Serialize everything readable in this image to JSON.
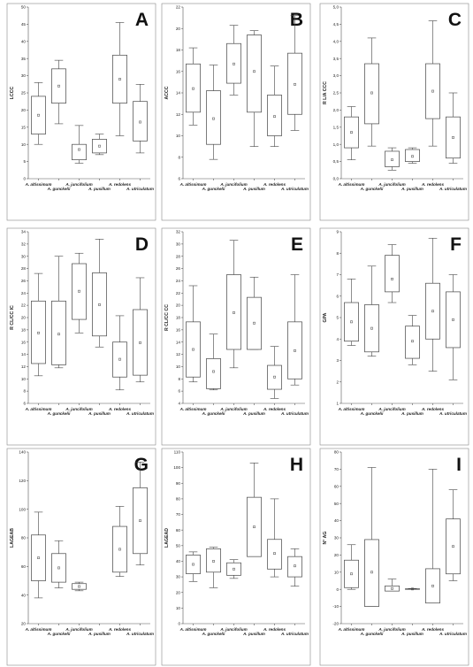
{
  "categories": [
    "A. altissimum",
    "A. gunckelii",
    "A. juncifolium",
    "A. pusillum",
    "A. redolens",
    "A. utriculatum"
  ],
  "chart_data": [
    {
      "id": "A",
      "panel_label": "A",
      "type": "box",
      "ylabel": "LCCC",
      "ylim": [
        0,
        50
      ],
      "yticks": [
        0,
        5,
        10,
        15,
        20,
        25,
        30,
        35,
        40,
        45,
        50
      ],
      "boxes": [
        {
          "min": 10,
          "q1": 13,
          "q3": 24,
          "max": 28,
          "mean": 18.5
        },
        {
          "min": 16,
          "q1": 22,
          "q3": 32,
          "max": 34.5,
          "mean": 27
        },
        {
          "min": 4.5,
          "q1": 5.5,
          "q3": 10,
          "max": 15.5,
          "mean": 8.5
        },
        {
          "min": 7,
          "q1": 7.5,
          "q3": 11.5,
          "max": 13,
          "mean": 9.5
        },
        {
          "min": 12.5,
          "q1": 22,
          "q3": 36,
          "max": 45.5,
          "mean": 29
        },
        {
          "min": 7.5,
          "q1": 11,
          "q3": 22.5,
          "max": 27.5,
          "mean": 16.5
        }
      ]
    },
    {
      "id": "B",
      "panel_label": "B",
      "type": "box",
      "ylabel": "ACCC",
      "ylim": [
        6,
        22
      ],
      "yticks": [
        6,
        8,
        10,
        12,
        14,
        16,
        18,
        20,
        22
      ],
      "boxes": [
        {
          "min": 11,
          "q1": 12.2,
          "q3": 16.7,
          "max": 18.2,
          "mean": 14.4
        },
        {
          "min": 7.8,
          "q1": 9.2,
          "q3": 14.2,
          "max": 16.6,
          "mean": 11.6
        },
        {
          "min": 13.8,
          "q1": 14.9,
          "q3": 18.6,
          "max": 20.3,
          "mean": 16.7
        },
        {
          "min": 9,
          "q1": 12.2,
          "q3": 19.4,
          "max": 19.8,
          "mean": 16
        },
        {
          "min": 9,
          "q1": 10,
          "q3": 13.8,
          "max": 16.5,
          "mean": 11.8
        },
        {
          "min": 10.5,
          "q1": 12,
          "q3": 17.7,
          "max": 21.2,
          "mean": 14.8
        }
      ]
    },
    {
      "id": "C",
      "panel_label": "C",
      "type": "box",
      "ylabel": "R L/A CCC",
      "ylim": [
        0,
        5
      ],
      "yticks": [
        0.0,
        0.5,
        1.0,
        1.5,
        2.0,
        2.5,
        3.0,
        3.5,
        4.0,
        4.5,
        5.0
      ],
      "tick_format": "comma1",
      "boxes": [
        {
          "min": 0.55,
          "q1": 0.9,
          "q3": 1.8,
          "max": 2.1,
          "mean": 1.35
        },
        {
          "min": 0.95,
          "q1": 1.6,
          "q3": 3.35,
          "max": 4.1,
          "mean": 2.5
        },
        {
          "min": 0.25,
          "q1": 0.35,
          "q3": 0.8,
          "max": 0.9,
          "mean": 0.55
        },
        {
          "min": 0.45,
          "q1": 0.5,
          "q3": 0.85,
          "max": 0.9,
          "mean": 0.65
        },
        {
          "min": 0.95,
          "q1": 1.75,
          "q3": 3.35,
          "max": 4.6,
          "mean": 2.55
        },
        {
          "min": 0.45,
          "q1": 0.6,
          "q3": 1.8,
          "max": 2.5,
          "mean": 1.2
        }
      ]
    },
    {
      "id": "D",
      "panel_label": "D",
      "type": "box",
      "ylabel": "R CL/CC IC",
      "ylim": [
        6,
        34
      ],
      "yticks": [
        6,
        8,
        10,
        12,
        14,
        16,
        18,
        20,
        22,
        24,
        26,
        28,
        30,
        32,
        34
      ],
      "boxes": [
        {
          "min": 10.5,
          "q1": 12.5,
          "q3": 22.7,
          "max": 27.2,
          "mean": 17.5
        },
        {
          "min": 11.8,
          "q1": 12.3,
          "q3": 22.7,
          "max": 30,
          "mean": 17.3
        },
        {
          "min": 17.5,
          "q1": 19.7,
          "q3": 28.8,
          "max": 30.5,
          "mean": 24.3
        },
        {
          "min": 15.2,
          "q1": 17,
          "q3": 27.3,
          "max": 32.8,
          "mean": 22.1
        },
        {
          "min": 8.2,
          "q1": 10.3,
          "q3": 16,
          "max": 20.3,
          "mean": 13.2
        },
        {
          "min": 9.5,
          "q1": 10.6,
          "q3": 21.3,
          "max": 26.5,
          "mean": 15.9
        }
      ]
    },
    {
      "id": "E",
      "panel_label": "E",
      "type": "box",
      "ylabel": "R CL/CC CC",
      "ylim": [
        4,
        32
      ],
      "yticks": [
        4,
        6,
        8,
        10,
        12,
        14,
        16,
        18,
        20,
        22,
        24,
        26,
        28,
        30,
        32
      ],
      "boxes": [
        {
          "min": 7.5,
          "q1": 8.3,
          "q3": 17.3,
          "max": 23.2,
          "mean": 12.8
        },
        {
          "min": 6.2,
          "q1": 6.4,
          "q3": 11.3,
          "max": 15.3,
          "mean": 9.2
        },
        {
          "min": 9.8,
          "q1": 12.8,
          "q3": 25,
          "max": 30.6,
          "mean": 18.8
        },
        {
          "min": 12.8,
          "q1": 12.8,
          "q3": 21.3,
          "max": 24.6,
          "mean": 17.1
        },
        {
          "min": 4.8,
          "q1": 6.3,
          "q3": 10.2,
          "max": 13.3,
          "mean": 8.3
        },
        {
          "min": 7,
          "q1": 8,
          "q3": 17.3,
          "max": 25,
          "mean": 12.6
        }
      ]
    },
    {
      "id": "F",
      "panel_label": "F",
      "type": "box",
      "ylabel": "GPA",
      "ylim": [
        1,
        9
      ],
      "yticks": [
        1,
        2,
        3,
        4,
        5,
        6,
        7,
        8,
        9
      ],
      "boxes": [
        {
          "min": 3.7,
          "q1": 3.9,
          "q3": 5.7,
          "max": 6.8,
          "mean": 4.8
        },
        {
          "min": 3.2,
          "q1": 3.4,
          "q3": 5.6,
          "max": 7.4,
          "mean": 4.5
        },
        {
          "min": 5.7,
          "q1": 6.2,
          "q3": 7.9,
          "max": 8.4,
          "mean": 6.8
        },
        {
          "min": 2.8,
          "q1": 3.1,
          "q3": 4.6,
          "max": 5.1,
          "mean": 3.9
        },
        {
          "min": 2.5,
          "q1": 4.0,
          "q3": 6.6,
          "max": 8.7,
          "mean": 5.3
        },
        {
          "min": 2.1,
          "q1": 3.6,
          "q3": 6.2,
          "max": 7.0,
          "mean": 4.9
        }
      ]
    },
    {
      "id": "G",
      "panel_label": "G",
      "type": "box",
      "ylabel": "LAGEAB",
      "ylim": [
        20,
        140
      ],
      "yticks": [
        20,
        40,
        60,
        80,
        100,
        120,
        140
      ],
      "boxes": [
        {
          "min": 38,
          "q1": 50,
          "q3": 82,
          "max": 98,
          "mean": 66
        },
        {
          "min": 45,
          "q1": 49,
          "q3": 69,
          "max": 78,
          "mean": 59
        },
        {
          "min": 43,
          "q1": 44,
          "q3": 48,
          "max": 49,
          "mean": 46
        },
        null,
        {
          "min": 53,
          "q1": 56,
          "q3": 88,
          "max": 102,
          "mean": 72
        },
        {
          "min": 61,
          "q1": 69,
          "q3": 115,
          "max": 133,
          "mean": 92
        }
      ]
    },
    {
      "id": "H",
      "panel_label": "H",
      "type": "box",
      "ylabel": "LAGEAD",
      "ylim": [
        0,
        110
      ],
      "yticks": [
        0,
        10,
        20,
        30,
        40,
        50,
        60,
        70,
        80,
        90,
        100,
        110
      ],
      "boxes": [
        {
          "min": 27,
          "q1": 32,
          "q3": 44,
          "max": 46,
          "mean": 38
        },
        {
          "min": 23,
          "q1": 33,
          "q3": 48,
          "max": 49,
          "mean": 40
        },
        {
          "min": 29,
          "q1": 31,
          "q3": 39,
          "max": 41,
          "mean": 35
        },
        {
          "min": 43,
          "q1": 43,
          "q3": 81,
          "max": 103,
          "mean": 62
        },
        {
          "min": 30,
          "q1": 35,
          "q3": 54,
          "max": 80,
          "mean": 45
        },
        {
          "min": 24,
          "q1": 30,
          "q3": 43,
          "max": 48,
          "mean": 37
        }
      ]
    },
    {
      "id": "I",
      "panel_label": "I",
      "type": "box",
      "ylabel": "N° AG",
      "ylim": [
        -20,
        80
      ],
      "yticks": [
        -20,
        -10,
        0,
        10,
        20,
        30,
        40,
        50,
        60,
        70,
        80
      ],
      "boxes": [
        {
          "min": 0,
          "q1": 1,
          "q3": 17,
          "max": 26,
          "mean": 9
        },
        {
          "min": -10,
          "q1": -10,
          "q3": 29,
          "max": 71,
          "mean": 10
        },
        {
          "min": -1,
          "q1": -1,
          "q3": 2,
          "max": 6,
          "mean": 0.5
        },
        {
          "min": 0,
          "q1": 0,
          "q3": 0.3,
          "max": 0.5,
          "mean": 0.2
        },
        {
          "min": -8,
          "q1": -8,
          "q3": 12,
          "max": 70,
          "mean": 2
        },
        {
          "min": 5,
          "q1": 9,
          "q3": 41,
          "max": 58,
          "mean": 25
        }
      ]
    }
  ]
}
